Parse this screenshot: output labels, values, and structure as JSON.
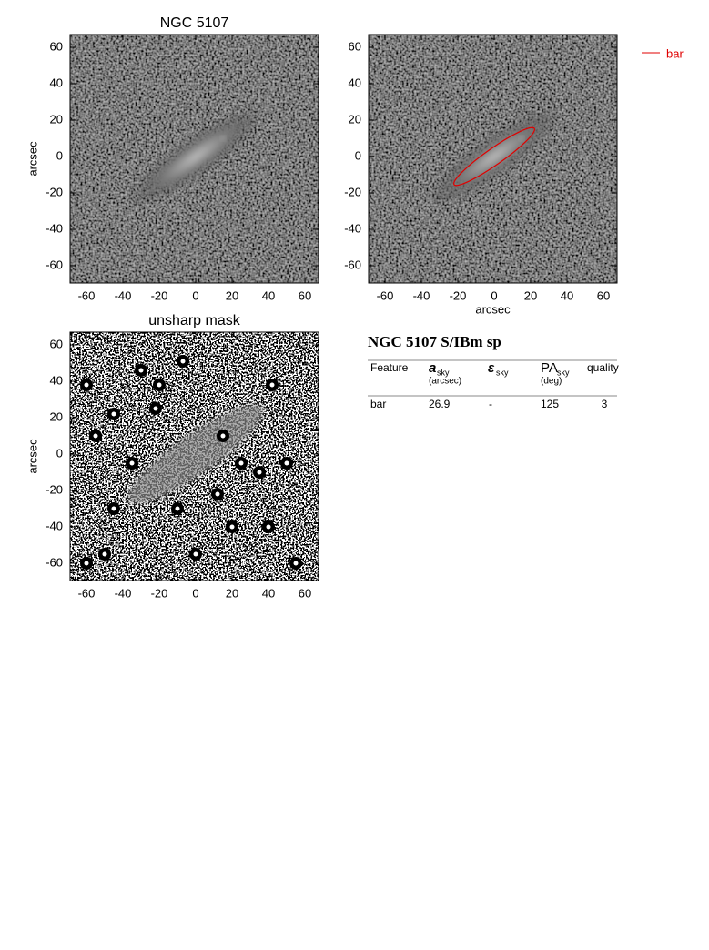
{
  "panels": [
    {
      "title": "NGC 5107",
      "ylabel": "arcsec",
      "xlim": [
        -69,
        67.5
      ],
      "ylim": [
        -69.5,
        67
      ],
      "xticks": [
        -60,
        -40,
        -20,
        0,
        20,
        40,
        60
      ],
      "yticks": [
        -60,
        -40,
        -20,
        0,
        20,
        40,
        60
      ],
      "style": "image"
    },
    {
      "xlabel": "arcsec",
      "legend": "bar",
      "legend_color": "#e00000",
      "xlim": [
        -69,
        67.5
      ],
      "ylim": [
        -69.5,
        67
      ],
      "xticks": [
        -60,
        -40,
        -20,
        0,
        20,
        40,
        60
      ],
      "yticks": [
        -60,
        -40,
        -20,
        0,
        20,
        40,
        60
      ],
      "style": "image"
    },
    {
      "title": "unsharp mask",
      "ylabel": "arcsec",
      "xlim": [
        -69,
        67.5
      ],
      "ylim": [
        -69.5,
        67
      ],
      "xticks": [
        -60,
        -40,
        -20,
        0,
        20,
        40,
        60
      ],
      "yticks": [
        -60,
        -40,
        -20,
        0,
        20,
        40,
        60
      ],
      "style": "mask"
    }
  ],
  "table": {
    "title": "NGC 5107  S/IBm sp",
    "header": [
      {
        "text": "Feature"
      },
      {
        "symbol": "a",
        "sub": "sky",
        "unit": "(arcsec)"
      },
      {
        "symbol": "ε",
        "sub": "sky"
      },
      {
        "symbol": "PA",
        "sub": "sky",
        "unit": "(deg)"
      },
      {
        "text": "quality"
      }
    ],
    "rows": [
      [
        "bar",
        "26.9",
        "-",
        "125",
        "3"
      ]
    ]
  }
}
